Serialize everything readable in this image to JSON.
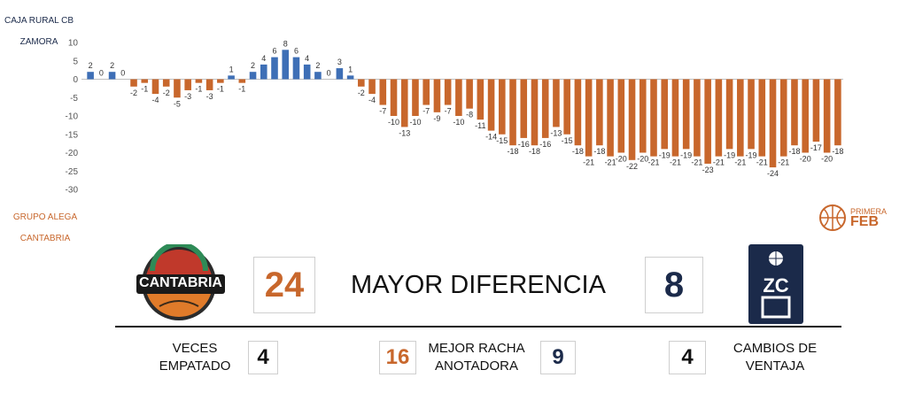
{
  "colors": {
    "home": "#c8672c",
    "away": "#3e6fb6",
    "navy": "#1b2a4a"
  },
  "team_top": {
    "line1": "CAJA RURAL CB",
    "line2": "ZAMORA"
  },
  "team_bottom": {
    "line1": "GRUPO ALEGA",
    "line2": "CANTABRIA"
  },
  "league_logo": {
    "line1": "PRIMERA",
    "line2": "FEB"
  },
  "home_logo": {
    "text": "CANTABRIA"
  },
  "away_logo": {
    "text": "ZC"
  },
  "center_title": "MAYOR DIFERENCIA",
  "home_max_diff": "24",
  "away_max_diff": "8",
  "stats": {
    "ties_label": "VECES\nEMPATADO",
    "ties_value": "4",
    "run_label": "MEJOR RACHA\nANOTADORA",
    "home_run": "16",
    "away_run": "9",
    "lead_changes_label": "CAMBIOS DE\nVENTAJA",
    "lead_changes_value": "4"
  },
  "chart_data": {
    "type": "bar",
    "title": "",
    "xlabel": "",
    "ylabel": "",
    "ylim": [
      -30,
      10
    ],
    "yticks": [
      10,
      5,
      0,
      -5,
      -10,
      -15,
      -20,
      -25,
      -30
    ],
    "grid": false,
    "series": [
      {
        "values": [
          2,
          0,
          2,
          0,
          -2,
          -1,
          -4,
          -2,
          -5,
          -3,
          -1,
          -3,
          -1,
          1,
          -1,
          2,
          4,
          6,
          8,
          6,
          4,
          2,
          0,
          3,
          1,
          -2,
          -4,
          -7,
          -10,
          -13,
          -10,
          -7,
          -9,
          -7,
          -10,
          -8,
          -11,
          -14,
          -15,
          -18,
          -16,
          -18,
          -16,
          -13,
          -15,
          -18,
          -21,
          -18,
          -21,
          -20,
          -22,
          -20,
          -21,
          -19,
          -21,
          -19,
          -21,
          -23,
          -21,
          -19,
          -21,
          -19,
          -21,
          -24,
          -21,
          -18,
          -20,
          -17,
          -20,
          -18
        ]
      }
    ]
  }
}
